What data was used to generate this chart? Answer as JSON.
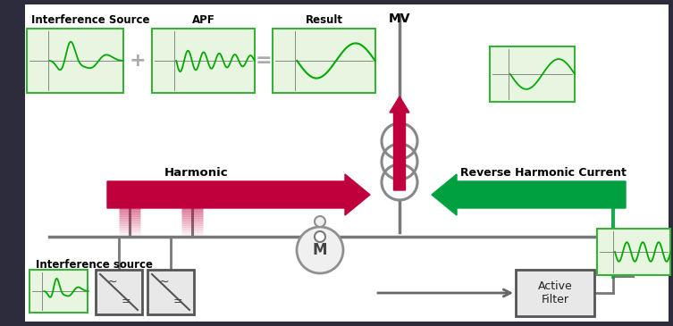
{
  "bg_color": "#1a1a2e",
  "bg_inner": "#2a2a3e",
  "white_bg": "#ffffff",
  "green_box_bg": "#e8f5e0",
  "green_box_border": "#3ab03a",
  "harmonic_arrow_color": "#c0003c",
  "harmonic_arrow_light": "#e05070",
  "reverse_arrow_color": "#00a040",
  "reverse_arrow_light": "#40c070",
  "wire_color": "#787878",
  "motor_fill": "#f0f0f0",
  "motor_border": "#909090",
  "transformer_color": "#888888",
  "box_border": "#555555",
  "box_fill": "#e0e0e0",
  "text_color_dark": "#000000",
  "plus_eq_color": "#aaaaaa",
  "text_harmonic": "Harmonic",
  "text_reverse": "Reverse Harmonic Current",
  "text_MV": "MV",
  "text_APF": "APF",
  "text_result": "Result",
  "text_interference_top": "Interference Source",
  "text_interference_bot": "Interference source",
  "text_active_filter": "Active\nFilter",
  "outer_bg": "#2c2c3c"
}
